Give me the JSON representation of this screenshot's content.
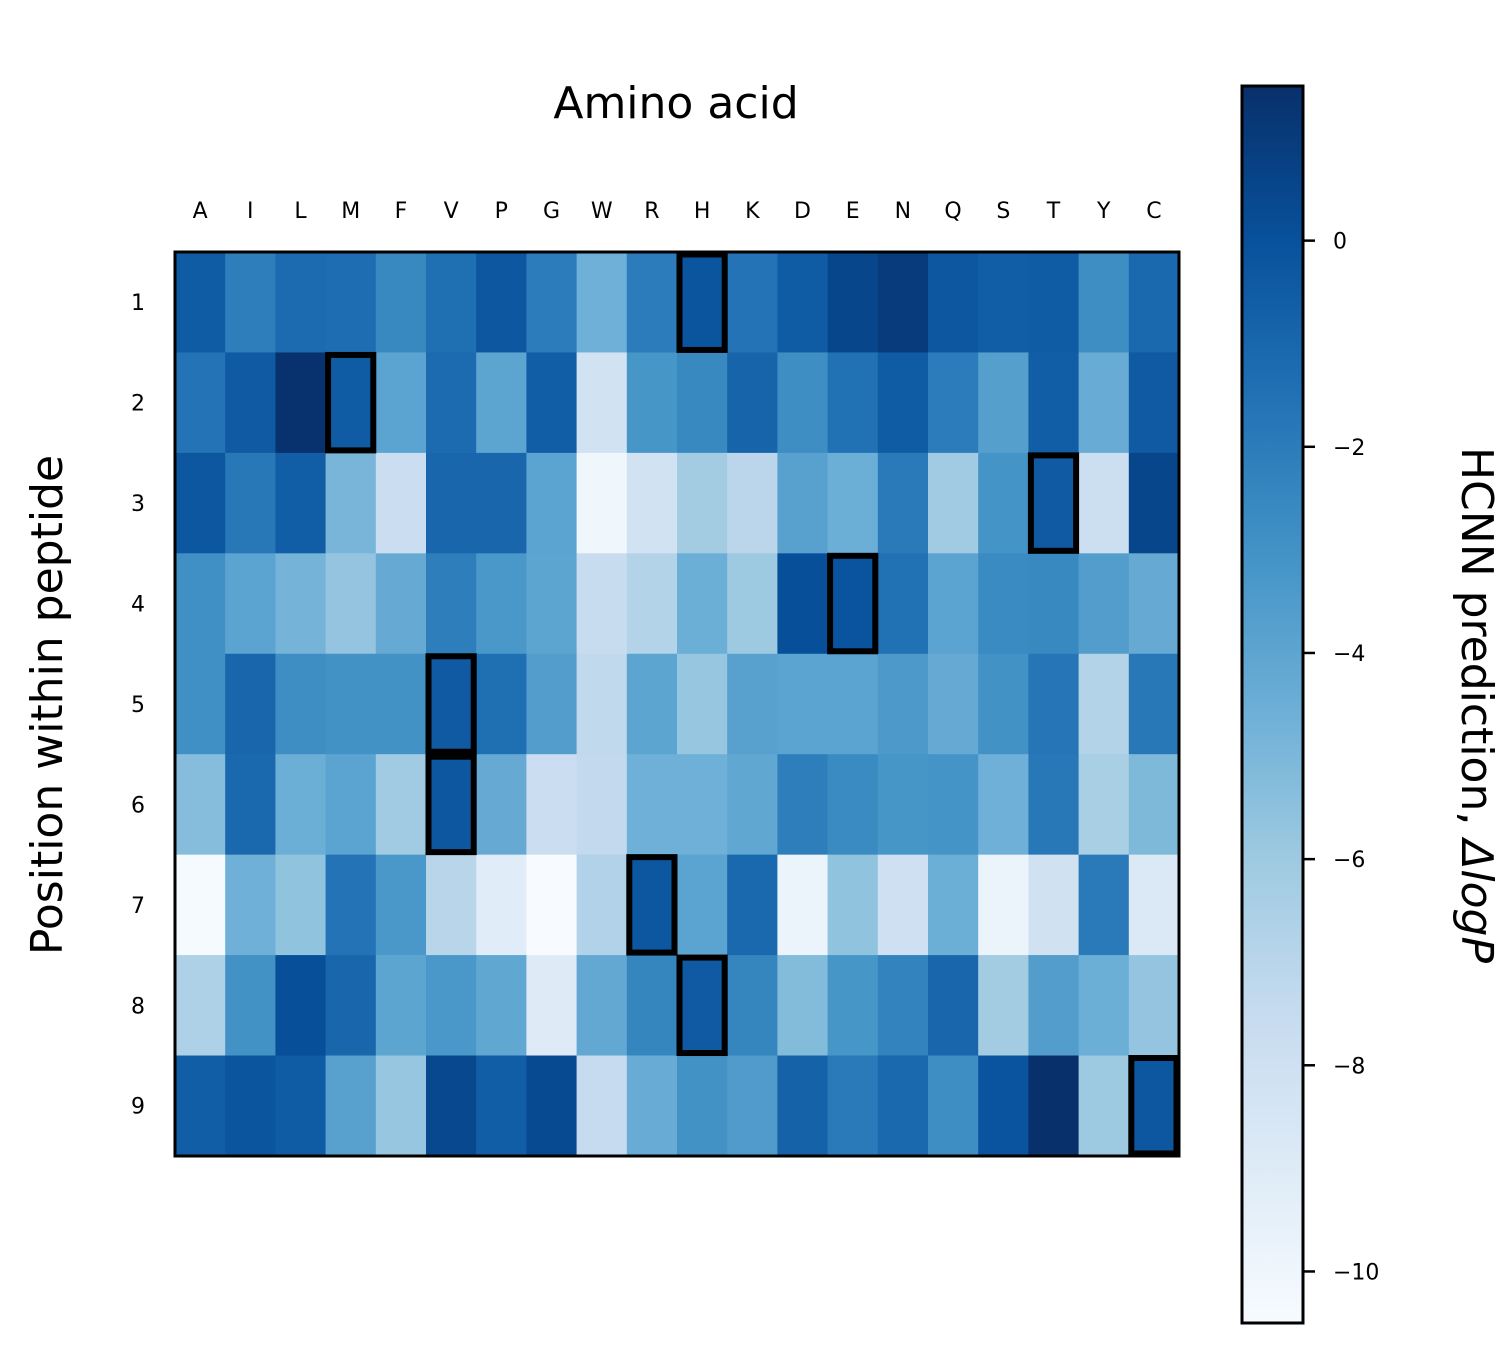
{
  "chart_data": {
    "type": "heatmap",
    "title": "",
    "xlabel": "Amino acid",
    "ylabel": "Position within peptide",
    "x_categories": [
      "A",
      "I",
      "L",
      "M",
      "F",
      "V",
      "P",
      "G",
      "W",
      "R",
      "H",
      "K",
      "D",
      "E",
      "N",
      "Q",
      "S",
      "T",
      "Y",
      "C"
    ],
    "y_categories": [
      "1",
      "2",
      "3",
      "4",
      "5",
      "6",
      "7",
      "8",
      "9"
    ],
    "values": [
      [
        -0.5,
        -2.1,
        -1.2,
        -1.3,
        -2.6,
        -1.4,
        -0.3,
        -2.0,
        -4.6,
        -2.0,
        -0.2,
        -1.6,
        -0.5,
        0.5,
        1.0,
        -0.3,
        -0.6,
        -0.5,
        -2.8,
        -1.1
      ],
      [
        -1.6,
        -0.4,
        1.4,
        -0.5,
        -3.9,
        -1.2,
        -4.0,
        -0.6,
        -8.2,
        -3.2,
        -2.6,
        -0.9,
        -2.8,
        -1.5,
        -0.5,
        -2.0,
        -3.7,
        -0.6,
        -4.4,
        -0.4
      ],
      [
        -0.3,
        -1.8,
        -0.6,
        -4.9,
        -7.8,
        -1.0,
        -1.0,
        -3.9,
        -10.0,
        -8.2,
        -6.2,
        -7.1,
        -3.8,
        -4.5,
        -1.9,
        -6.1,
        -3.1,
        -0.4,
        -7.9,
        0.5
      ],
      [
        -2.9,
        -3.9,
        -4.8,
        -5.7,
        -4.3,
        -2.1,
        -3.3,
        -4.0,
        -7.6,
        -6.8,
        -4.5,
        -6.0,
        0.1,
        -0.1,
        -1.5,
        -3.9,
        -2.7,
        -2.6,
        -3.6,
        -4.3
      ],
      [
        -2.9,
        -1.0,
        -2.8,
        -3.0,
        -3.0,
        -0.4,
        -1.4,
        -3.6,
        -7.3,
        -4.0,
        -5.8,
        -3.8,
        -3.9,
        -3.9,
        -3.4,
        -4.3,
        -3.0,
        -1.7,
        -6.8,
        -1.8
      ],
      [
        -5.3,
        -1.1,
        -4.5,
        -3.9,
        -6.1,
        -0.3,
        -4.3,
        -7.8,
        -7.4,
        -4.6,
        -4.6,
        -4.1,
        -2.1,
        -2.7,
        -3.2,
        -3.1,
        -4.6,
        -1.8,
        -6.4,
        -5.1
      ],
      [
        -10.4,
        -4.6,
        -5.6,
        -1.6,
        -3.3,
        -7.0,
        -9.1,
        -10.5,
        -6.7,
        -0.3,
        -3.9,
        -1.1,
        -9.8,
        -5.6,
        -8.0,
        -4.5,
        -9.8,
        -8.1,
        -1.9,
        -8.8
      ],
      [
        -6.6,
        -3.0,
        0.1,
        -1.0,
        -4.0,
        -3.3,
        -4.1,
        -9.0,
        -4.2,
        -2.4,
        -0.4,
        -2.4,
        -5.2,
        -3.2,
        -2.3,
        -1.0,
        -6.2,
        -3.6,
        -4.5,
        -5.7
      ],
      [
        -0.6,
        -0.2,
        -0.5,
        -3.8,
        -5.8,
        0.4,
        -0.6,
        0.3,
        -7.5,
        -4.4,
        -3.0,
        -3.5,
        -0.8,
        -1.9,
        -1.1,
        -2.8,
        -0.1,
        1.5,
        -6.0,
        -0.3
      ]
    ],
    "highlighted_cells": [
      {
        "row": "1",
        "col": "H"
      },
      {
        "row": "2",
        "col": "M"
      },
      {
        "row": "3",
        "col": "T"
      },
      {
        "row": "4",
        "col": "E"
      },
      {
        "row": "5",
        "col": "V"
      },
      {
        "row": "6",
        "col": "V"
      },
      {
        "row": "7",
        "col": "R"
      },
      {
        "row": "8",
        "col": "H"
      },
      {
        "row": "9",
        "col": "C"
      }
    ],
    "colorbar": {
      "label_prefix": "HCNN prediction, ",
      "label_symbol": "ΔlogP",
      "range": [
        -10.5,
        1.5
      ],
      "ticks": [
        0,
        -2,
        -4,
        -6,
        -8,
        -10
      ],
      "tick_labels": [
        "0",
        "−2",
        "−4",
        "−6",
        "−8",
        "−10"
      ],
      "colormap": "Blues",
      "colors": [
        "#f7fbff",
        "#deebf7",
        "#c6dbef",
        "#9ecae1",
        "#6baed6",
        "#4292c6",
        "#2171b5",
        "#08519c",
        "#08306b"
      ]
    },
    "grid": false,
    "legend": "none"
  }
}
